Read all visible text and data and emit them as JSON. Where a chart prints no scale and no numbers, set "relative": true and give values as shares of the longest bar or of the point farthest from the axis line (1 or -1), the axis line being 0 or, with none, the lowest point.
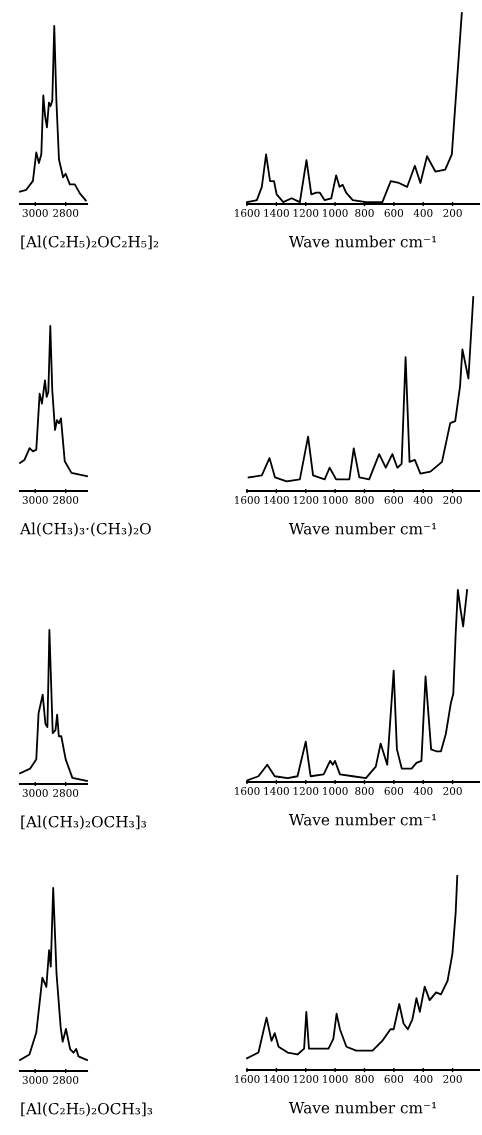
{
  "chart_data": [
    {
      "type": "line",
      "relative": true,
      "xlabel": "[Al(C₂H₅)₂OC₂H₅]₂",
      "xlim": [
        3100,
        2660
      ],
      "xticks": [
        3000,
        2800
      ],
      "tick_labels": "x",
      "series": [
        {
          "color": "#000000",
          "x": [
            3100,
            3059,
            3015,
            2993,
            2976,
            2960,
            2947,
            2936,
            2923,
            2910,
            2899,
            2888,
            2875,
            2861,
            2844,
            2817,
            2800,
            2773,
            2740,
            2707,
            2668
          ],
          "values": [
            0.07,
            0.08,
            0.13,
            0.29,
            0.23,
            0.28,
            0.61,
            0.5,
            0.43,
            0.57,
            0.55,
            0.58,
            1.0,
            0.58,
            0.25,
            0.15,
            0.17,
            0.11,
            0.11,
            0.06,
            0.02
          ]
        }
      ]
    },
    {
      "type": "line",
      "relative": true,
      "xlabel": "Wave number cm⁻¹",
      "xlim": [
        1600,
        20
      ],
      "xticks": [
        1600,
        1400,
        1200,
        1000,
        800,
        600,
        400,
        200
      ],
      "tick_labels": "x",
      "series": [
        {
          "color": "#000000",
          "x": [
            1600,
            1533,
            1499,
            1470,
            1443,
            1416,
            1398,
            1353,
            1296,
            1240,
            1195,
            1162,
            1128,
            1105,
            1071,
            1026,
            993,
            970,
            948,
            925,
            880,
            790,
            678,
            621,
            565,
            509,
            457,
            419,
            374,
            317,
            250,
            205,
            171,
            137
          ],
          "values": [
            0.01,
            0.02,
            0.09,
            0.26,
            0.12,
            0.12,
            0.05,
            0.01,
            0.03,
            0.01,
            0.23,
            0.05,
            0.06,
            0.06,
            0.02,
            0.03,
            0.15,
            0.09,
            0.1,
            0.06,
            0.02,
            0.01,
            0.01,
            0.12,
            0.11,
            0.09,
            0.2,
            0.11,
            0.25,
            0.17,
            0.18,
            0.26,
            0.63,
            1.0
          ]
        }
      ]
    },
    {
      "type": "line",
      "relative": true,
      "xlabel": "Al(CH₃)₃·(CH₃)₂O",
      "xlim": [
        3100,
        2660
      ],
      "xticks": [
        3000,
        2800
      ],
      "tick_labels": "x",
      "series": [
        {
          "color": "#000000",
          "x": [
            3100,
            3070,
            3037,
            3015,
            2993,
            2971,
            2956,
            2936,
            2925,
            2914,
            2901,
            2888,
            2870,
            2857,
            2844,
            2831,
            2806,
            2762,
            2660
          ],
          "values": [
            0.17,
            0.19,
            0.26,
            0.24,
            0.25,
            0.59,
            0.53,
            0.67,
            0.57,
            0.6,
            1.0,
            0.61,
            0.37,
            0.43,
            0.41,
            0.44,
            0.18,
            0.11,
            0.09
          ]
        }
      ]
    },
    {
      "type": "line",
      "relative": true,
      "xlabel": "Wave number cm⁻¹",
      "xlim": [
        1600,
        20
      ],
      "xticks": [
        1600,
        1400,
        1200,
        1000,
        800,
        600,
        400,
        200
      ],
      "tick_labels": "x",
      "series": [
        {
          "color": "#000000",
          "x": [
            1589,
            1499,
            1447,
            1409,
            1330,
            1240,
            1184,
            1150,
            1071,
            1037,
            993,
            903,
            873,
            835,
            768,
            700,
            655,
            610,
            576,
            547,
            520,
            493,
            457,
            419,
            351,
            272,
            216,
            182,
            149,
            133,
            92,
            59
          ],
          "values": [
            0.07,
            0.08,
            0.17,
            0.07,
            0.05,
            0.06,
            0.28,
            0.08,
            0.06,
            0.12,
            0.06,
            0.06,
            0.22,
            0.07,
            0.06,
            0.19,
            0.12,
            0.19,
            0.12,
            0.14,
            0.69,
            0.15,
            0.16,
            0.09,
            0.1,
            0.15,
            0.35,
            0.36,
            0.54,
            0.73,
            0.58,
            1.0
          ]
        }
      ]
    },
    {
      "type": "line",
      "relative": true,
      "xlabel": "[Al(CH₃)₂OCH₃]₃",
      "xlim": [
        3100,
        2660
      ],
      "xticks": [
        3000,
        2800
      ],
      "tick_labels": "x",
      "series": [
        {
          "color": "#000000",
          "x": [
            3100,
            3033,
            2993,
            2978,
            2951,
            2933,
            2920,
            2907,
            2885,
            2867,
            2856,
            2845,
            2829,
            2800,
            2756,
            2660
          ],
          "values": [
            0.07,
            0.1,
            0.16,
            0.46,
            0.58,
            0.39,
            0.37,
            1.0,
            0.33,
            0.35,
            0.45,
            0.31,
            0.31,
            0.16,
            0.04,
            0.02
          ]
        }
      ]
    },
    {
      "type": "line",
      "relative": true,
      "xlabel": "Wave number cm⁻¹",
      "xlim": [
        1600,
        20
      ],
      "xticks": [
        1600,
        1400,
        1200,
        1000,
        800,
        600,
        400,
        200
      ],
      "tick_labels": "x",
      "series": [
        {
          "color": "#000000",
          "x": [
            1593,
            1522,
            1462,
            1411,
            1323,
            1256,
            1200,
            1167,
            1078,
            1034,
            1016,
            1001,
            967,
            879,
            790,
            723,
            690,
            645,
            601,
            579,
            546,
            479,
            446,
            412,
            384,
            346,
            312,
            279,
            246,
            212,
            195,
            179,
            164,
            146,
            128,
            101
          ],
          "values": [
            0.01,
            0.03,
            0.09,
            0.03,
            0.02,
            0.03,
            0.21,
            0.03,
            0.04,
            0.11,
            0.09,
            0.11,
            0.04,
            0.03,
            0.02,
            0.08,
            0.2,
            0.09,
            0.58,
            0.17,
            0.07,
            0.07,
            0.1,
            0.11,
            0.55,
            0.17,
            0.16,
            0.16,
            0.25,
            0.41,
            0.46,
            0.77,
            1.0,
            0.9,
            0.81,
            1.0
          ]
        }
      ]
    },
    {
      "type": "line",
      "relative": true,
      "xlabel": "[Al(C₂H₅)₂OCH₃]₃",
      "xlim": [
        3100,
        2660
      ],
      "xticks": [
        3000,
        2800
      ],
      "tick_labels": "x",
      "series": [
        {
          "color": "#000000",
          "x": [
            3100,
            3038,
            2993,
            2953,
            2927,
            2909,
            2898,
            2882,
            2860,
            2833,
            2820,
            2798,
            2771,
            2749,
            2731,
            2716,
            2660
          ],
          "values": [
            0.06,
            0.09,
            0.21,
            0.51,
            0.46,
            0.66,
            0.57,
            1.0,
            0.53,
            0.24,
            0.16,
            0.23,
            0.12,
            0.1,
            0.12,
            0.08,
            0.06
          ]
        }
      ]
    },
    {
      "type": "line",
      "relative": true,
      "xlabel": "Wave number cm⁻¹",
      "xlim": [
        1600,
        20
      ],
      "xticks": [
        1600,
        1400,
        1200,
        1000,
        800,
        600,
        400,
        200
      ],
      "tick_labels": "x",
      "series": [
        {
          "color": "#000000",
          "x": [
            1600,
            1522,
            1467,
            1433,
            1411,
            1385,
            1323,
            1256,
            1211,
            1196,
            1178,
            1134,
            1100,
            1045,
            1012,
            990,
            967,
            923,
            856,
            745,
            679,
            623,
            601,
            563,
            534,
            505,
            474,
            446,
            423,
            390,
            356,
            312,
            279,
            234,
            201,
            179,
            168
          ],
          "values": [
            0.06,
            0.09,
            0.27,
            0.15,
            0.19,
            0.12,
            0.09,
            0.08,
            0.11,
            0.3,
            0.11,
            0.11,
            0.11,
            0.11,
            0.16,
            0.29,
            0.21,
            0.12,
            0.1,
            0.1,
            0.15,
            0.21,
            0.21,
            0.34,
            0.24,
            0.21,
            0.26,
            0.37,
            0.3,
            0.43,
            0.36,
            0.4,
            0.39,
            0.46,
            0.6,
            0.81,
            1.0
          ]
        }
      ]
    }
  ]
}
